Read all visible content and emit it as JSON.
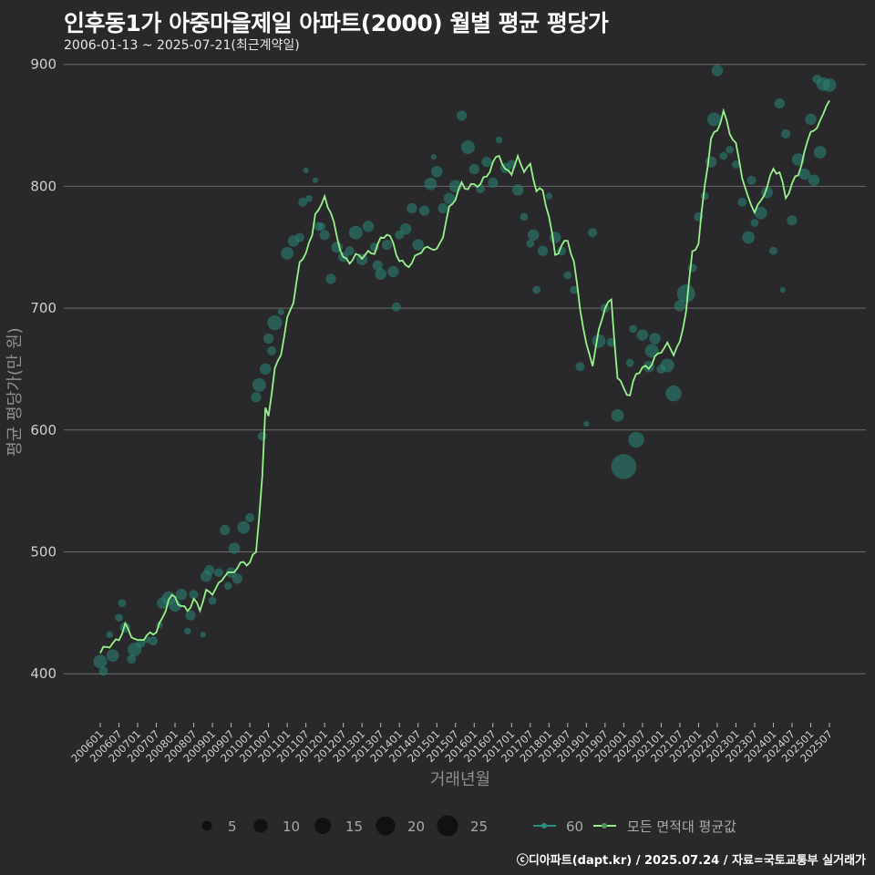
{
  "header": {
    "title": "인후동1가 아중마을제일 아파트(2000) 월별 평균 평당가",
    "subtitle": "2006-01-13 ~ 2025-07-21(최근계약일)"
  },
  "footer": {
    "credit": "ⓒ디아파트(dapt.kr) / 2025.07.24 / 자료=국토교통부 실거래가"
  },
  "colors": {
    "background": "#29292b",
    "grid": "#6a6a6a",
    "line": "#98f28c",
    "points": "#2a7f6f"
  },
  "legend": {
    "size_labels": [
      "5",
      "10",
      "15",
      "20",
      "25"
    ],
    "series_label": "60",
    "avg_label": "모든 면적대 평균값"
  },
  "chart_data": {
    "type": "line",
    "title": "인후동1가 아중마을제일 아파트(2000) 월별 평균 평당가",
    "xlabel": "거래년월",
    "ylabel": "평균 평당가(만 원)",
    "ylim": [
      362,
      908
    ],
    "yticks": [
      400,
      500,
      600,
      700,
      800,
      900
    ],
    "x_range": [
      "200601",
      "202507"
    ],
    "x_tick_labels": [
      "200601",
      "200607",
      "200701",
      "200707",
      "200801",
      "200807",
      "200901",
      "200907",
      "201001",
      "201007",
      "201101",
      "201107",
      "201201",
      "201207",
      "201301",
      "201307",
      "201401",
      "201407",
      "201501",
      "201507",
      "201601",
      "201607",
      "201701",
      "201707",
      "201801",
      "201807",
      "201901",
      "201907",
      "202001",
      "202007",
      "202101",
      "202107",
      "202201",
      "202207",
      "202301",
      "202307",
      "202401",
      "202407",
      "202501",
      "202507"
    ],
    "avg_anchors": [
      [
        "200601",
        417
      ],
      [
        "200603",
        421
      ],
      [
        "200605",
        423
      ],
      [
        "200607",
        430
      ],
      [
        "200609",
        441
      ],
      [
        "200611",
        432
      ],
      [
        "200701",
        424
      ],
      [
        "200703",
        429
      ],
      [
        "200705",
        433
      ],
      [
        "200707",
        437
      ],
      [
        "200709",
        445
      ],
      [
        "200711",
        460
      ],
      [
        "200801",
        462
      ],
      [
        "200803",
        456
      ],
      [
        "200805",
        454
      ],
      [
        "200807",
        460
      ],
      [
        "200809",
        452
      ],
      [
        "200811",
        466
      ],
      [
        "200901",
        468
      ],
      [
        "200903",
        474
      ],
      [
        "200905",
        482
      ],
      [
        "200907",
        480
      ],
      [
        "200909",
        487
      ],
      [
        "200911",
        492
      ],
      [
        "201001",
        493
      ],
      [
        "201003",
        500
      ],
      [
        "201005",
        560
      ],
      [
        "201006",
        615
      ],
      [
        "201007",
        612
      ],
      [
        "201009",
        650
      ],
      [
        "201011",
        665
      ],
      [
        "201101",
        690
      ],
      [
        "201103",
        705
      ],
      [
        "201105",
        735
      ],
      [
        "201107",
        748
      ],
      [
        "201109",
        760
      ],
      [
        "201110",
        780
      ],
      [
        "201112",
        782
      ],
      [
        "201201",
        790
      ],
      [
        "201203",
        777
      ],
      [
        "201205",
        760
      ],
      [
        "201207",
        742
      ],
      [
        "201209",
        738
      ],
      [
        "201211",
        741
      ],
      [
        "201301",
        742
      ],
      [
        "201303",
        746
      ],
      [
        "201305",
        748
      ],
      [
        "201307",
        756
      ],
      [
        "201309",
        760
      ],
      [
        "201311",
        752
      ],
      [
        "201401",
        740
      ],
      [
        "201403",
        737
      ],
      [
        "201405",
        736
      ],
      [
        "201407",
        744
      ],
      [
        "201409",
        747
      ],
      [
        "201411",
        752
      ],
      [
        "201501",
        748
      ],
      [
        "201503",
        760
      ],
      [
        "201505",
        780
      ],
      [
        "201507",
        790
      ],
      [
        "201509",
        803
      ],
      [
        "201511",
        800
      ],
      [
        "201601",
        801
      ],
      [
        "201603",
        800
      ],
      [
        "201605",
        808
      ],
      [
        "201607",
        820
      ],
      [
        "201609",
        828
      ],
      [
        "201611",
        812
      ],
      [
        "201701",
        810
      ],
      [
        "201703",
        822
      ],
      [
        "201705",
        815
      ],
      [
        "201707",
        818
      ],
      [
        "201709",
        797
      ],
      [
        "201711",
        794
      ],
      [
        "201801",
        775
      ],
      [
        "201803",
        745
      ],
      [
        "201805",
        752
      ],
      [
        "201807",
        756
      ],
      [
        "201809",
        735
      ],
      [
        "201811",
        700
      ],
      [
        "201901",
        670
      ],
      [
        "201903",
        656
      ],
      [
        "201905",
        680
      ],
      [
        "201907",
        700
      ],
      [
        "201909",
        705
      ],
      [
        "201911",
        645
      ],
      [
        "202001",
        635
      ],
      [
        "202003",
        628
      ],
      [
        "202005",
        645
      ],
      [
        "202007",
        650
      ],
      [
        "202009",
        653
      ],
      [
        "202011",
        660
      ],
      [
        "202101",
        665
      ],
      [
        "202103",
        668
      ],
      [
        "202105",
        663
      ],
      [
        "202107",
        672
      ],
      [
        "202109",
        700
      ],
      [
        "202111",
        745
      ],
      [
        "202201",
        752
      ],
      [
        "202203",
        800
      ],
      [
        "202205",
        840
      ],
      [
        "202207",
        848
      ],
      [
        "202209",
        860
      ],
      [
        "202211",
        843
      ],
      [
        "202301",
        833
      ],
      [
        "202303",
        810
      ],
      [
        "202305",
        790
      ],
      [
        "202307",
        780
      ],
      [
        "202309",
        785
      ],
      [
        "202311",
        800
      ],
      [
        "202401",
        815
      ],
      [
        "202403",
        813
      ],
      [
        "202405",
        790
      ],
      [
        "202407",
        800
      ],
      [
        "202409",
        810
      ],
      [
        "202411",
        828
      ],
      [
        "202501",
        848
      ],
      [
        "202503",
        845
      ],
      [
        "202505",
        860
      ],
      [
        "202507",
        868
      ]
    ],
    "points": [
      [
        "200601",
        410,
        12
      ],
      [
        "200602",
        402,
        8
      ],
      [
        "200604",
        432,
        6
      ],
      [
        "200605",
        415,
        11
      ],
      [
        "200607",
        446,
        7
      ],
      [
        "200608",
        458,
        7
      ],
      [
        "200609",
        438,
        9
      ],
      [
        "200611",
        412,
        8
      ],
      [
        "200612",
        420,
        12
      ],
      [
        "200702",
        425,
        8
      ],
      [
        "200704",
        428,
        6
      ],
      [
        "200706",
        427,
        8
      ],
      [
        "200708",
        440,
        6
      ],
      [
        "200709",
        458,
        10
      ],
      [
        "200711",
        462,
        12
      ],
      [
        "200801",
        456,
        11
      ],
      [
        "200803",
        465,
        10
      ],
      [
        "200805",
        435,
        6
      ],
      [
        "200806",
        448,
        9
      ],
      [
        "200807",
        465,
        8
      ],
      [
        "200810",
        432,
        5
      ],
      [
        "200811",
        480,
        10
      ],
      [
        "200812",
        485,
        9
      ],
      [
        "200901",
        460,
        7
      ],
      [
        "200903",
        483,
        8
      ],
      [
        "200905",
        518,
        9
      ],
      [
        "200906",
        472,
        7
      ],
      [
        "200907",
        483,
        9
      ],
      [
        "200908",
        503,
        10
      ],
      [
        "200909",
        478,
        9
      ],
      [
        "200911",
        520,
        11
      ],
      [
        "201001",
        528,
        8
      ],
      [
        "201003",
        627,
        9
      ],
      [
        "201004",
        637,
        12
      ],
      [
        "201005",
        595,
        8
      ],
      [
        "201006",
        650,
        10
      ],
      [
        "201007",
        675,
        9
      ],
      [
        "201008",
        665,
        8
      ],
      [
        "201009",
        688,
        13
      ],
      [
        "201011",
        697,
        6
      ],
      [
        "201101",
        745,
        11
      ],
      [
        "201103",
        755,
        10
      ],
      [
        "201105",
        758,
        8
      ],
      [
        "201106",
        787,
        8
      ],
      [
        "201107",
        813,
        5
      ],
      [
        "201108",
        790,
        6
      ],
      [
        "201110",
        805,
        5
      ],
      [
        "201111",
        767,
        8
      ],
      [
        "201112",
        767,
        7
      ],
      [
        "201201",
        760,
        9
      ],
      [
        "201203",
        724,
        9
      ],
      [
        "201205",
        750,
        10
      ],
      [
        "201207",
        742,
        9
      ],
      [
        "201209",
        747,
        8
      ],
      [
        "201211",
        762,
        12
      ],
      [
        "201301",
        740,
        10
      ],
      [
        "201303",
        767,
        10
      ],
      [
        "201305",
        750,
        8
      ],
      [
        "201306",
        735,
        9
      ],
      [
        "201307",
        728,
        10
      ],
      [
        "201309",
        752,
        9
      ],
      [
        "201311",
        730,
        10
      ],
      [
        "201312",
        701,
        8
      ],
      [
        "201401",
        760,
        8
      ],
      [
        "201403",
        765,
        10
      ],
      [
        "201405",
        782,
        9
      ],
      [
        "201407",
        752,
        10
      ],
      [
        "201409",
        780,
        9
      ],
      [
        "201411",
        802,
        11
      ],
      [
        "201412",
        824,
        5
      ],
      [
        "201501",
        812,
        10
      ],
      [
        "201503",
        782,
        9
      ],
      [
        "201505",
        790,
        10
      ],
      [
        "201507",
        800,
        11
      ],
      [
        "201509",
        858,
        9
      ],
      [
        "201511",
        832,
        12
      ],
      [
        "201601",
        814,
        9
      ],
      [
        "201603",
        798,
        8
      ],
      [
        "201605",
        820,
        9
      ],
      [
        "201607",
        803,
        9
      ],
      [
        "201609",
        838,
        6
      ],
      [
        "201611",
        815,
        9
      ],
      [
        "201701",
        818,
        8
      ],
      [
        "201703",
        797,
        10
      ],
      [
        "201705",
        775,
        7
      ],
      [
        "201707",
        753,
        7
      ],
      [
        "201708",
        760,
        10
      ],
      [
        "201709",
        715,
        7
      ],
      [
        "201711",
        747,
        9
      ],
      [
        "201801",
        792,
        6
      ],
      [
        "201803",
        758,
        10
      ],
      [
        "201805",
        747,
        8
      ],
      [
        "201807",
        727,
        7
      ],
      [
        "201809",
        715,
        7
      ],
      [
        "201811",
        652,
        8
      ],
      [
        "201901",
        605,
        5
      ],
      [
        "201903",
        762,
        8
      ],
      [
        "201905",
        673,
        12
      ],
      [
        "201907",
        700,
        8
      ],
      [
        "201909",
        672,
        8
      ],
      [
        "201911",
        612,
        11
      ],
      [
        "202001",
        570,
        22
      ],
      [
        "202003",
        655,
        7
      ],
      [
        "202004",
        683,
        7
      ],
      [
        "202005",
        592,
        14
      ],
      [
        "202007",
        678,
        10
      ],
      [
        "202009",
        652,
        10
      ],
      [
        "202010",
        665,
        12
      ],
      [
        "202011",
        675,
        10
      ],
      [
        "202101",
        650,
        8
      ],
      [
        "202103",
        653,
        12
      ],
      [
        "202105",
        630,
        14
      ],
      [
        "202107",
        702,
        10
      ],
      [
        "202109",
        712,
        16
      ],
      [
        "202111",
        733,
        8
      ],
      [
        "202201",
        775,
        8
      ],
      [
        "202203",
        792,
        7
      ],
      [
        "202205",
        820,
        10
      ],
      [
        "202206",
        855,
        12
      ],
      [
        "202207",
        895,
        10
      ],
      [
        "202209",
        825,
        7
      ],
      [
        "202211",
        830,
        7
      ],
      [
        "202301",
        818,
        7
      ],
      [
        "202303",
        787,
        8
      ],
      [
        "202305",
        758,
        11
      ],
      [
        "202306",
        805,
        8
      ],
      [
        "202307",
        770,
        7
      ],
      [
        "202309",
        778,
        11
      ],
      [
        "202311",
        795,
        10
      ],
      [
        "202401",
        747,
        7
      ],
      [
        "202403",
        868,
        9
      ],
      [
        "202404",
        715,
        5
      ],
      [
        "202405",
        843,
        8
      ],
      [
        "202407",
        772,
        9
      ],
      [
        "202409",
        822,
        11
      ],
      [
        "202411",
        810,
        10
      ],
      [
        "202501",
        855,
        10
      ],
      [
        "202502",
        805,
        10
      ],
      [
        "202503",
        888,
        8
      ],
      [
        "202504",
        828,
        11
      ],
      [
        "202505",
        884,
        12
      ],
      [
        "202507",
        883,
        12
      ]
    ]
  }
}
